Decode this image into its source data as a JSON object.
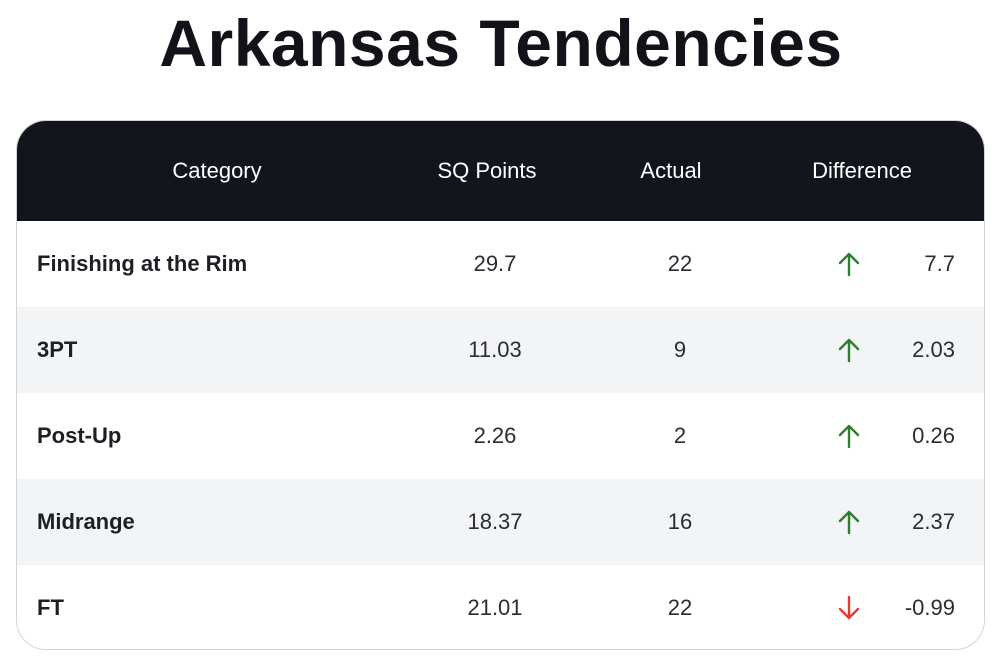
{
  "title": "Arkansas Tendencies",
  "colors": {
    "header_bg": "#12151b",
    "up": "#2e7d32",
    "down": "#e53935",
    "row_alt": "#f3f4f6"
  },
  "chart_data": {
    "type": "table",
    "title": "Arkansas Tendencies",
    "columns": [
      "Category",
      "SQ Points",
      "Actual",
      "Difference"
    ],
    "rows": [
      {
        "category": "Finishing at the Rim",
        "sq_points": "29.7",
        "actual": "22",
        "direction": "up",
        "difference": "7.7"
      },
      {
        "category": "3PT",
        "sq_points": "11.03",
        "actual": "9",
        "direction": "up",
        "difference": "2.03"
      },
      {
        "category": "Post-Up",
        "sq_points": "2.26",
        "actual": "2",
        "direction": "up",
        "difference": "0.26"
      },
      {
        "category": "Midrange",
        "sq_points": "18.37",
        "actual": "16",
        "direction": "up",
        "difference": "2.37"
      },
      {
        "category": "FT",
        "sq_points": "21.01",
        "actual": "22",
        "direction": "down",
        "difference": "-0.99"
      }
    ]
  }
}
